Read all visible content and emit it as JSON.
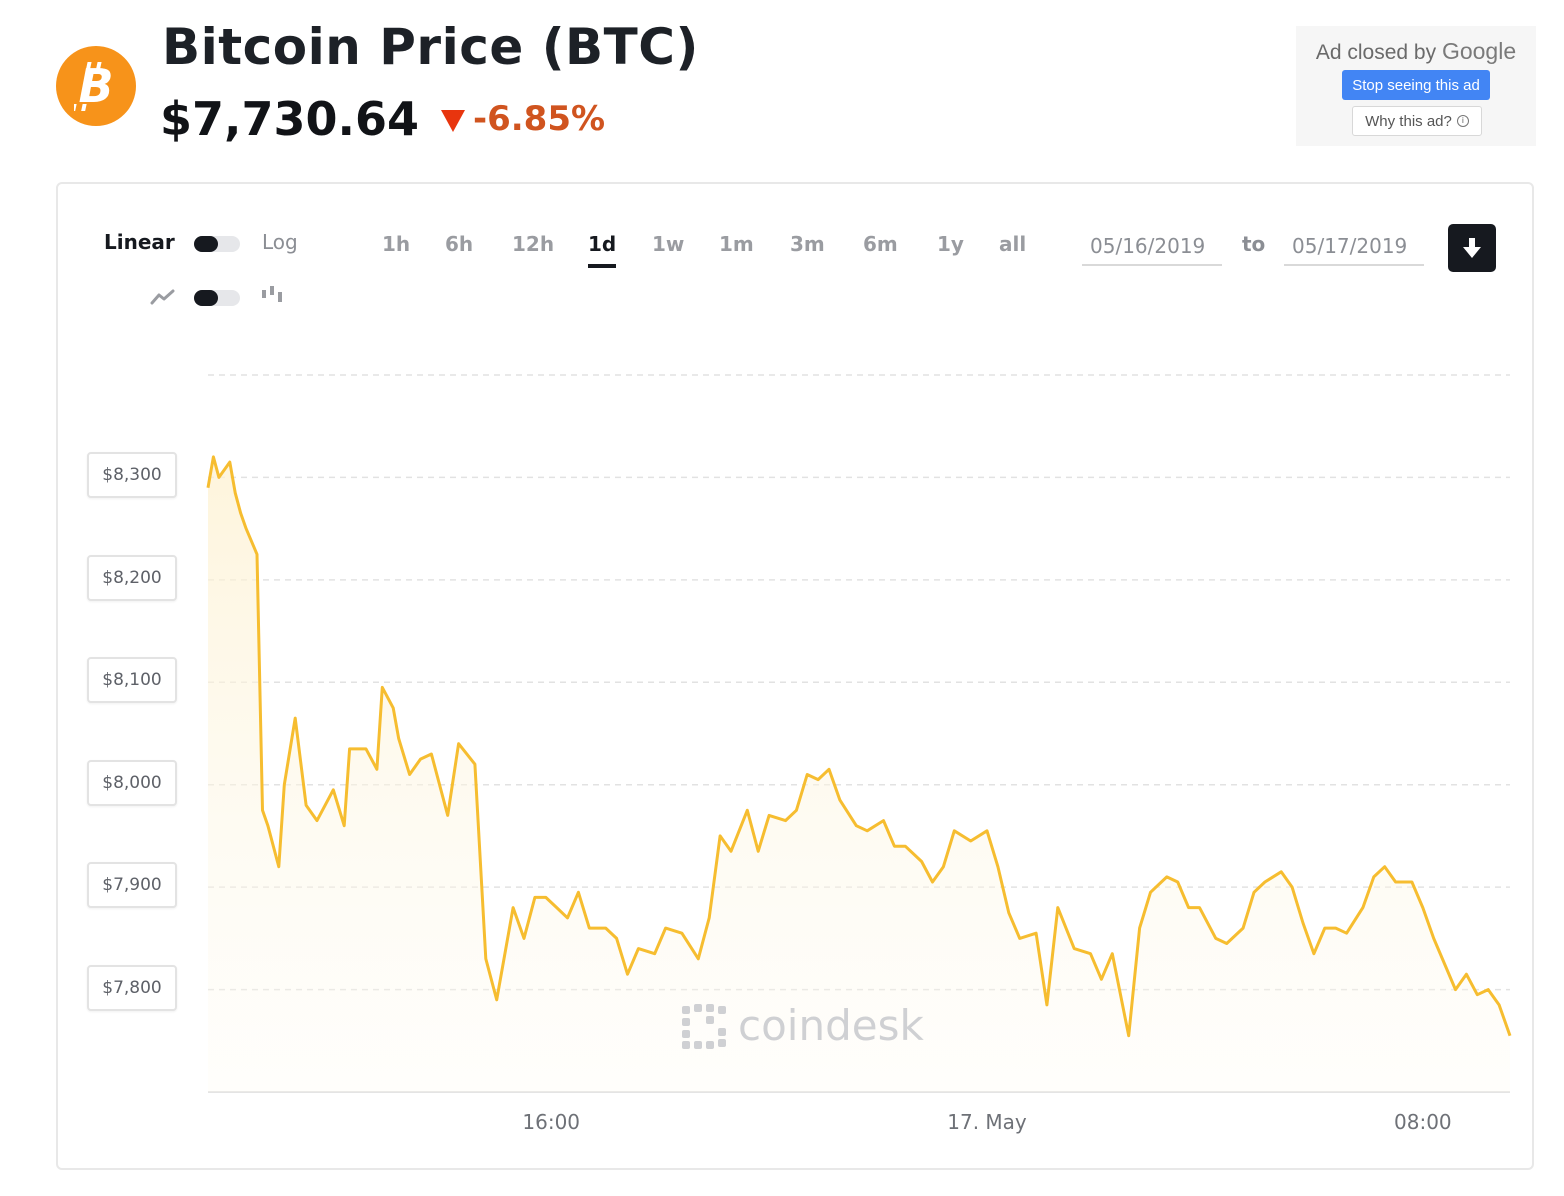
{
  "header": {
    "logo_icon": "bitcoin-icon",
    "title": "Bitcoin Price",
    "ticker": "(BTC)",
    "price": "$7,730.64",
    "change": "-6.85%",
    "change_color": "#d0541f",
    "brand_color": "#f7931a"
  },
  "ad": {
    "closed_text": "Ad closed by",
    "closed_brand": "Google",
    "stop_label": "Stop seeing this ad",
    "why_label": "Why this ad?"
  },
  "controls": {
    "scale_linear": "Linear",
    "scale_log": "Log",
    "line_icon": "line-chart-icon",
    "candle_icon": "candlestick-icon",
    "ranges": [
      "1h",
      "6h",
      "12h",
      "1d",
      "1w",
      "1m",
      "3m",
      "6m",
      "1y",
      "all"
    ],
    "active_range": "1d",
    "date_from": "05/16/2019",
    "date_to_label": "to",
    "date_to": "05/17/2019",
    "download_icon": "download-icon"
  },
  "watermark": "coindesk",
  "chart_data": {
    "type": "area",
    "title": "",
    "xlabel": "",
    "ylabel": "",
    "line_color": "#f6bd30",
    "y_ticks": [
      7800,
      7900,
      8000,
      8100,
      8200,
      8300
    ],
    "y_tick_labels": [
      "$7,800",
      "$7,900",
      "$8,000",
      "$8,100",
      "$8,200",
      "$8,300"
    ],
    "ylim": [
      7700,
      8400
    ],
    "x_tick_labels": [
      "16:00",
      "17. May",
      "08:00"
    ],
    "x_tick_hours": [
      16,
      24,
      32
    ],
    "xlim_hours": [
      9.7,
      33.6
    ],
    "grid": true,
    "x_hours": [
      9.7,
      9.8,
      9.9,
      10.1,
      10.2,
      10.3,
      10.4,
      10.6,
      10.7,
      10.8,
      11.0,
      11.1,
      11.3,
      11.5,
      11.7,
      12.0,
      12.2,
      12.3,
      12.6,
      12.8,
      12.9,
      13.1,
      13.2,
      13.4,
      13.6,
      13.8,
      14.1,
      14.3,
      14.6,
      14.8,
      15.0,
      15.3,
      15.5,
      15.7,
      15.9,
      16.1,
      16.3,
      16.5,
      16.7,
      17.0,
      17.2,
      17.4,
      17.6,
      17.9,
      18.1,
      18.4,
      18.7,
      18.9,
      19.1,
      19.3,
      19.6,
      19.8,
      20.0,
      20.3,
      20.5,
      20.7,
      20.9,
      21.1,
      21.3,
      21.6,
      21.8,
      22.1,
      22.3,
      22.5,
      22.8,
      23.0,
      23.2,
      23.4,
      23.7,
      24.0,
      24.2,
      24.4,
      24.6,
      24.9,
      25.1,
      25.3,
      25.6,
      25.9,
      26.1,
      26.3,
      26.6,
      26.8,
      27.0,
      27.3,
      27.5,
      27.7,
      27.9,
      28.2,
      28.4,
      28.7,
      28.9,
      29.1,
      29.4,
      29.6,
      29.8,
      30.0,
      30.2,
      30.4,
      30.6,
      30.9,
      31.1,
      31.3,
      31.5,
      31.8,
      32.0,
      32.2,
      32.4,
      32.6,
      32.8,
      33.0,
      33.2,
      33.4,
      33.6
    ],
    "values": [
      8290,
      8320,
      8300,
      8315,
      8285,
      8265,
      8250,
      8225,
      7975,
      7960,
      7920,
      8000,
      8065,
      7980,
      7965,
      7995,
      7960,
      8035,
      8035,
      8015,
      8095,
      8075,
      8045,
      8010,
      8025,
      8030,
      7970,
      8040,
      8020,
      7830,
      7790,
      7880,
      7850,
      7890,
      7890,
      7880,
      7870,
      7895,
      7860,
      7860,
      7850,
      7815,
      7840,
      7835,
      7860,
      7855,
      7830,
      7870,
      7950,
      7935,
      7975,
      7935,
      7970,
      7965,
      7975,
      8010,
      8005,
      8015,
      7985,
      7960,
      7955,
      7965,
      7940,
      7940,
      7925,
      7905,
      7920,
      7955,
      7945,
      7955,
      7920,
      7875,
      7850,
      7855,
      7785,
      7880,
      7840,
      7835,
      7810,
      7835,
      7755,
      7860,
      7895,
      7910,
      7905,
      7880,
      7880,
      7850,
      7845,
      7860,
      7895,
      7905,
      7915,
      7900,
      7865,
      7835,
      7860,
      7860,
      7855,
      7880,
      7910,
      7920,
      7905,
      7905,
      7880,
      7850,
      7825,
      7800,
      7815,
      7795,
      7800,
      7785,
      7755
    ]
  }
}
